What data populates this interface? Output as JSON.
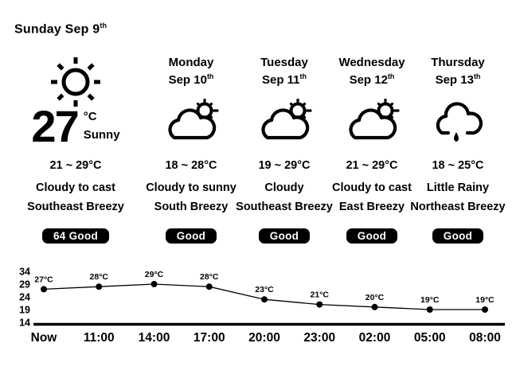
{
  "header": {
    "date_label": "Sunday Sep 9",
    "date_suffix": "th"
  },
  "current": {
    "icon": "sun-icon",
    "temp": "27",
    "unit": "°C",
    "condition": "Sunny",
    "range": "21 ~ 29°C",
    "summary": "Cloudy to cast",
    "wind": "Southeast Breezy",
    "air_quality": "64 Good"
  },
  "forecast": [
    {
      "day": "Monday",
      "date": "Sep 10",
      "date_suffix": "th",
      "icon": "cloud-sun-icon",
      "range": "18 ~ 28°C",
      "summary": "Cloudy to sunny",
      "wind": "South Breezy",
      "air_quality": "Good"
    },
    {
      "day": "Tuesday",
      "date": "Sep 11",
      "date_suffix": "th",
      "icon": "cloud-sun-icon",
      "range": "19 ~ 29°C",
      "summary": "Cloudy",
      "wind": "Southeast Breezy",
      "air_quality": "Good"
    },
    {
      "day": "Wednesday",
      "date": "Sep 12",
      "date_suffix": "th",
      "icon": "cloud-sun-icon",
      "range": "21 ~ 29°C",
      "summary": "Cloudy to cast",
      "wind": "East Breezy",
      "air_quality": "Good"
    },
    {
      "day": "Thursday",
      "date": "Sep 13",
      "date_suffix": "th",
      "icon": "rain-cloud-icon",
      "range": "18 ~ 25°C",
      "summary": "Little Rainy",
      "wind": "Northeast Breezy",
      "air_quality": "Good"
    }
  ],
  "chart_data": {
    "type": "line",
    "x": [
      "Now",
      "11:00",
      "14:00",
      "17:00",
      "20:00",
      "23:00",
      "02:00",
      "05:00",
      "08:00"
    ],
    "values": [
      27,
      28,
      29,
      28,
      23,
      21,
      20,
      19,
      19
    ],
    "point_labels": [
      "27°C",
      "28°C",
      "29°C",
      "28°C",
      "23°C",
      "21°C",
      "20°C",
      "19°C",
      "19°C"
    ],
    "yticks": [
      34,
      29,
      24,
      19,
      14
    ],
    "ylim": [
      14,
      34
    ],
    "title": "",
    "xlabel": "",
    "ylabel": "",
    "grid": false,
    "legend": false,
    "line_color": "#000000",
    "marker": "circle"
  },
  "colors": {
    "background": "#ffffff",
    "foreground": "#000000",
    "badge_bg": "#000000",
    "badge_text": "#ffffff"
  }
}
